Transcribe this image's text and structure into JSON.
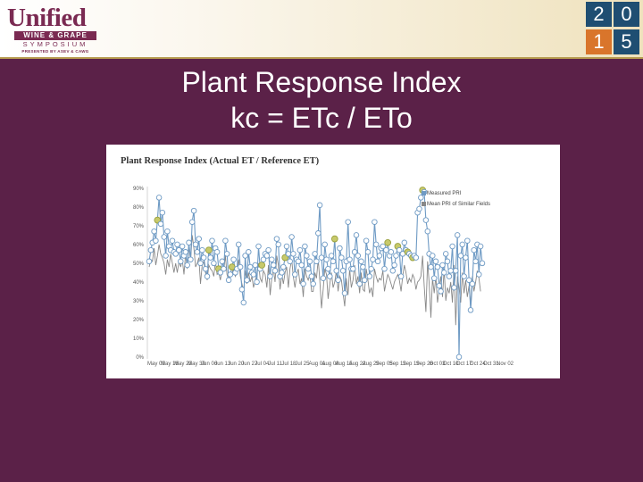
{
  "header": {
    "logo": {
      "main": "Unified",
      "band": "WINE & GRAPE",
      "symposium": "SYMPOSIUM",
      "presented": "PRESENTED BY ASEV & CAWG"
    },
    "year_digits": [
      "2",
      "0",
      "1",
      "5"
    ]
  },
  "slide": {
    "title_line1": "Plant Response Index",
    "title_line2": "kc = ETc / ETo"
  },
  "chart_data": {
    "type": "line",
    "title": "Plant Response Index (Actual ET / Reference ET)",
    "xlabel": "",
    "ylabel": "",
    "ylim": [
      0,
      90
    ],
    "y_ticks": [
      "90%",
      "80%",
      "70%",
      "60%",
      "50%",
      "40%",
      "30%",
      "20%",
      "10%",
      "0%"
    ],
    "x_ticks": [
      "May 09",
      "May 16",
      "May 23",
      "May 30",
      "Jun 06",
      "Jun 13",
      "Jun 20",
      "Jun 27",
      "Jul 04",
      "Jul 11",
      "Jul 18",
      "Jul 25",
      "Aug 01",
      "Aug 08",
      "Aug 15",
      "Aug 22",
      "Aug 29",
      "Sep 05",
      "Sep 12",
      "Sep 19",
      "Sep 26",
      "Oct 03",
      "Oct 10",
      "Oct 17",
      "Oct 24",
      "Oct 31",
      "Nov 02"
    ],
    "legend_position": "top-right",
    "series": [
      {
        "name": "Measured PRI",
        "color": "#6e9ac4",
        "values": [
          52,
          58,
          62,
          68,
          63,
          74,
          86,
          72,
          78,
          65,
          55,
          68,
          60,
          58,
          63,
          57,
          56,
          61,
          58,
          52,
          60,
          55,
          57,
          50,
          62,
          53,
          73,
          79,
          61,
          57,
          64,
          51,
          58,
          54,
          48,
          44,
          58,
          54,
          63,
          51,
          59,
          57,
          48,
          46,
          52,
          48,
          63,
          56,
          42,
          45,
          49,
          53,
          46,
          48,
          61,
          49,
          37,
          30,
          55,
          42,
          57,
          49,
          46,
          45,
          50,
          41,
          60,
          48,
          50,
          53,
          56,
          55,
          58,
          44,
          53,
          50,
          47,
          64,
          61,
          44,
          46,
          49,
          54,
          60,
          56,
          52,
          65,
          56,
          45,
          53,
          52,
          58,
          50,
          40,
          60,
          55,
          48,
          52,
          44,
          40,
          56,
          52,
          67,
          82,
          54,
          43,
          61,
          53,
          48,
          44,
          55,
          52,
          64,
          47,
          42,
          59,
          54,
          47,
          35,
          52,
          73,
          53,
          48,
          48,
          57,
          66,
          55,
          40,
          52,
          49,
          42,
          63,
          57,
          44,
          48,
          53,
          73,
          61,
          52,
          55,
          59,
          60,
          48,
          58,
          62,
          55,
          57,
          47,
          50,
          55,
          60,
          58,
          44,
          56,
          62,
          58,
          57,
          56,
          55,
          54,
          55,
          54,
          78,
          80,
          86,
          90,
          89,
          74,
          68,
          56,
          49,
          55,
          43,
          52,
          49,
          39,
          36,
          50,
          46,
          56,
          52,
          44,
          47,
          60,
          38,
          47,
          66,
          1,
          55,
          61,
          44,
          54,
          63,
          42,
          26,
          40,
          58,
          52,
          61,
          45,
          60,
          51
        ]
      },
      {
        "name": "Mean PRI of Similar Fields",
        "color": "#888888",
        "values": [
          49,
          53,
          52,
          59,
          50,
          55,
          61,
          56,
          54,
          51,
          45,
          53,
          49,
          56,
          51,
          46,
          51,
          46,
          52,
          49,
          53,
          45,
          56,
          48,
          60,
          52,
          66,
          59,
          49,
          51,
          54,
          40,
          50,
          52,
          46,
          42,
          50,
          48,
          47,
          44,
          52,
          45,
          46,
          42,
          48,
          47,
          55,
          45,
          42,
          44,
          46,
          48,
          44,
          46,
          53,
          44,
          40,
          36,
          47,
          40,
          46,
          41,
          44,
          38,
          42,
          45,
          51,
          43,
          41,
          47,
          45,
          38,
          50,
          34,
          43,
          48,
          41,
          55,
          50,
          37,
          45,
          40,
          46,
          49,
          38,
          48,
          53,
          44,
          38,
          45,
          48,
          40,
          43,
          33,
          48,
          44,
          42,
          45,
          36,
          36,
          46,
          43,
          53,
          42,
          27,
          37,
          48,
          45,
          32,
          40,
          46,
          38,
          41,
          47,
          36,
          44,
          42,
          35,
          28,
          43,
          34,
          48,
          38,
          42,
          50,
          40,
          44,
          35,
          46,
          37,
          36,
          48,
          42,
          35,
          38,
          33,
          48,
          44,
          41,
          43,
          42,
          47,
          36,
          41,
          45,
          43,
          40,
          37,
          41,
          43,
          45,
          42,
          36,
          44,
          50,
          46,
          40,
          43,
          41,
          45,
          43,
          37,
          41,
          42,
          44,
          55,
          39,
          25,
          52,
          40,
          22,
          43,
          35,
          44,
          30,
          37,
          44,
          33,
          48,
          31,
          38,
          35,
          41,
          30,
          50,
          18,
          44,
          38,
          30,
          46,
          35,
          42,
          33,
          39,
          28,
          44,
          36,
          41,
          47,
          43,
          36
        ]
      }
    ],
    "highlight_indices": [
      5,
      36,
      42,
      50,
      68,
      82,
      112,
      144,
      150,
      156,
      159,
      165
    ]
  }
}
